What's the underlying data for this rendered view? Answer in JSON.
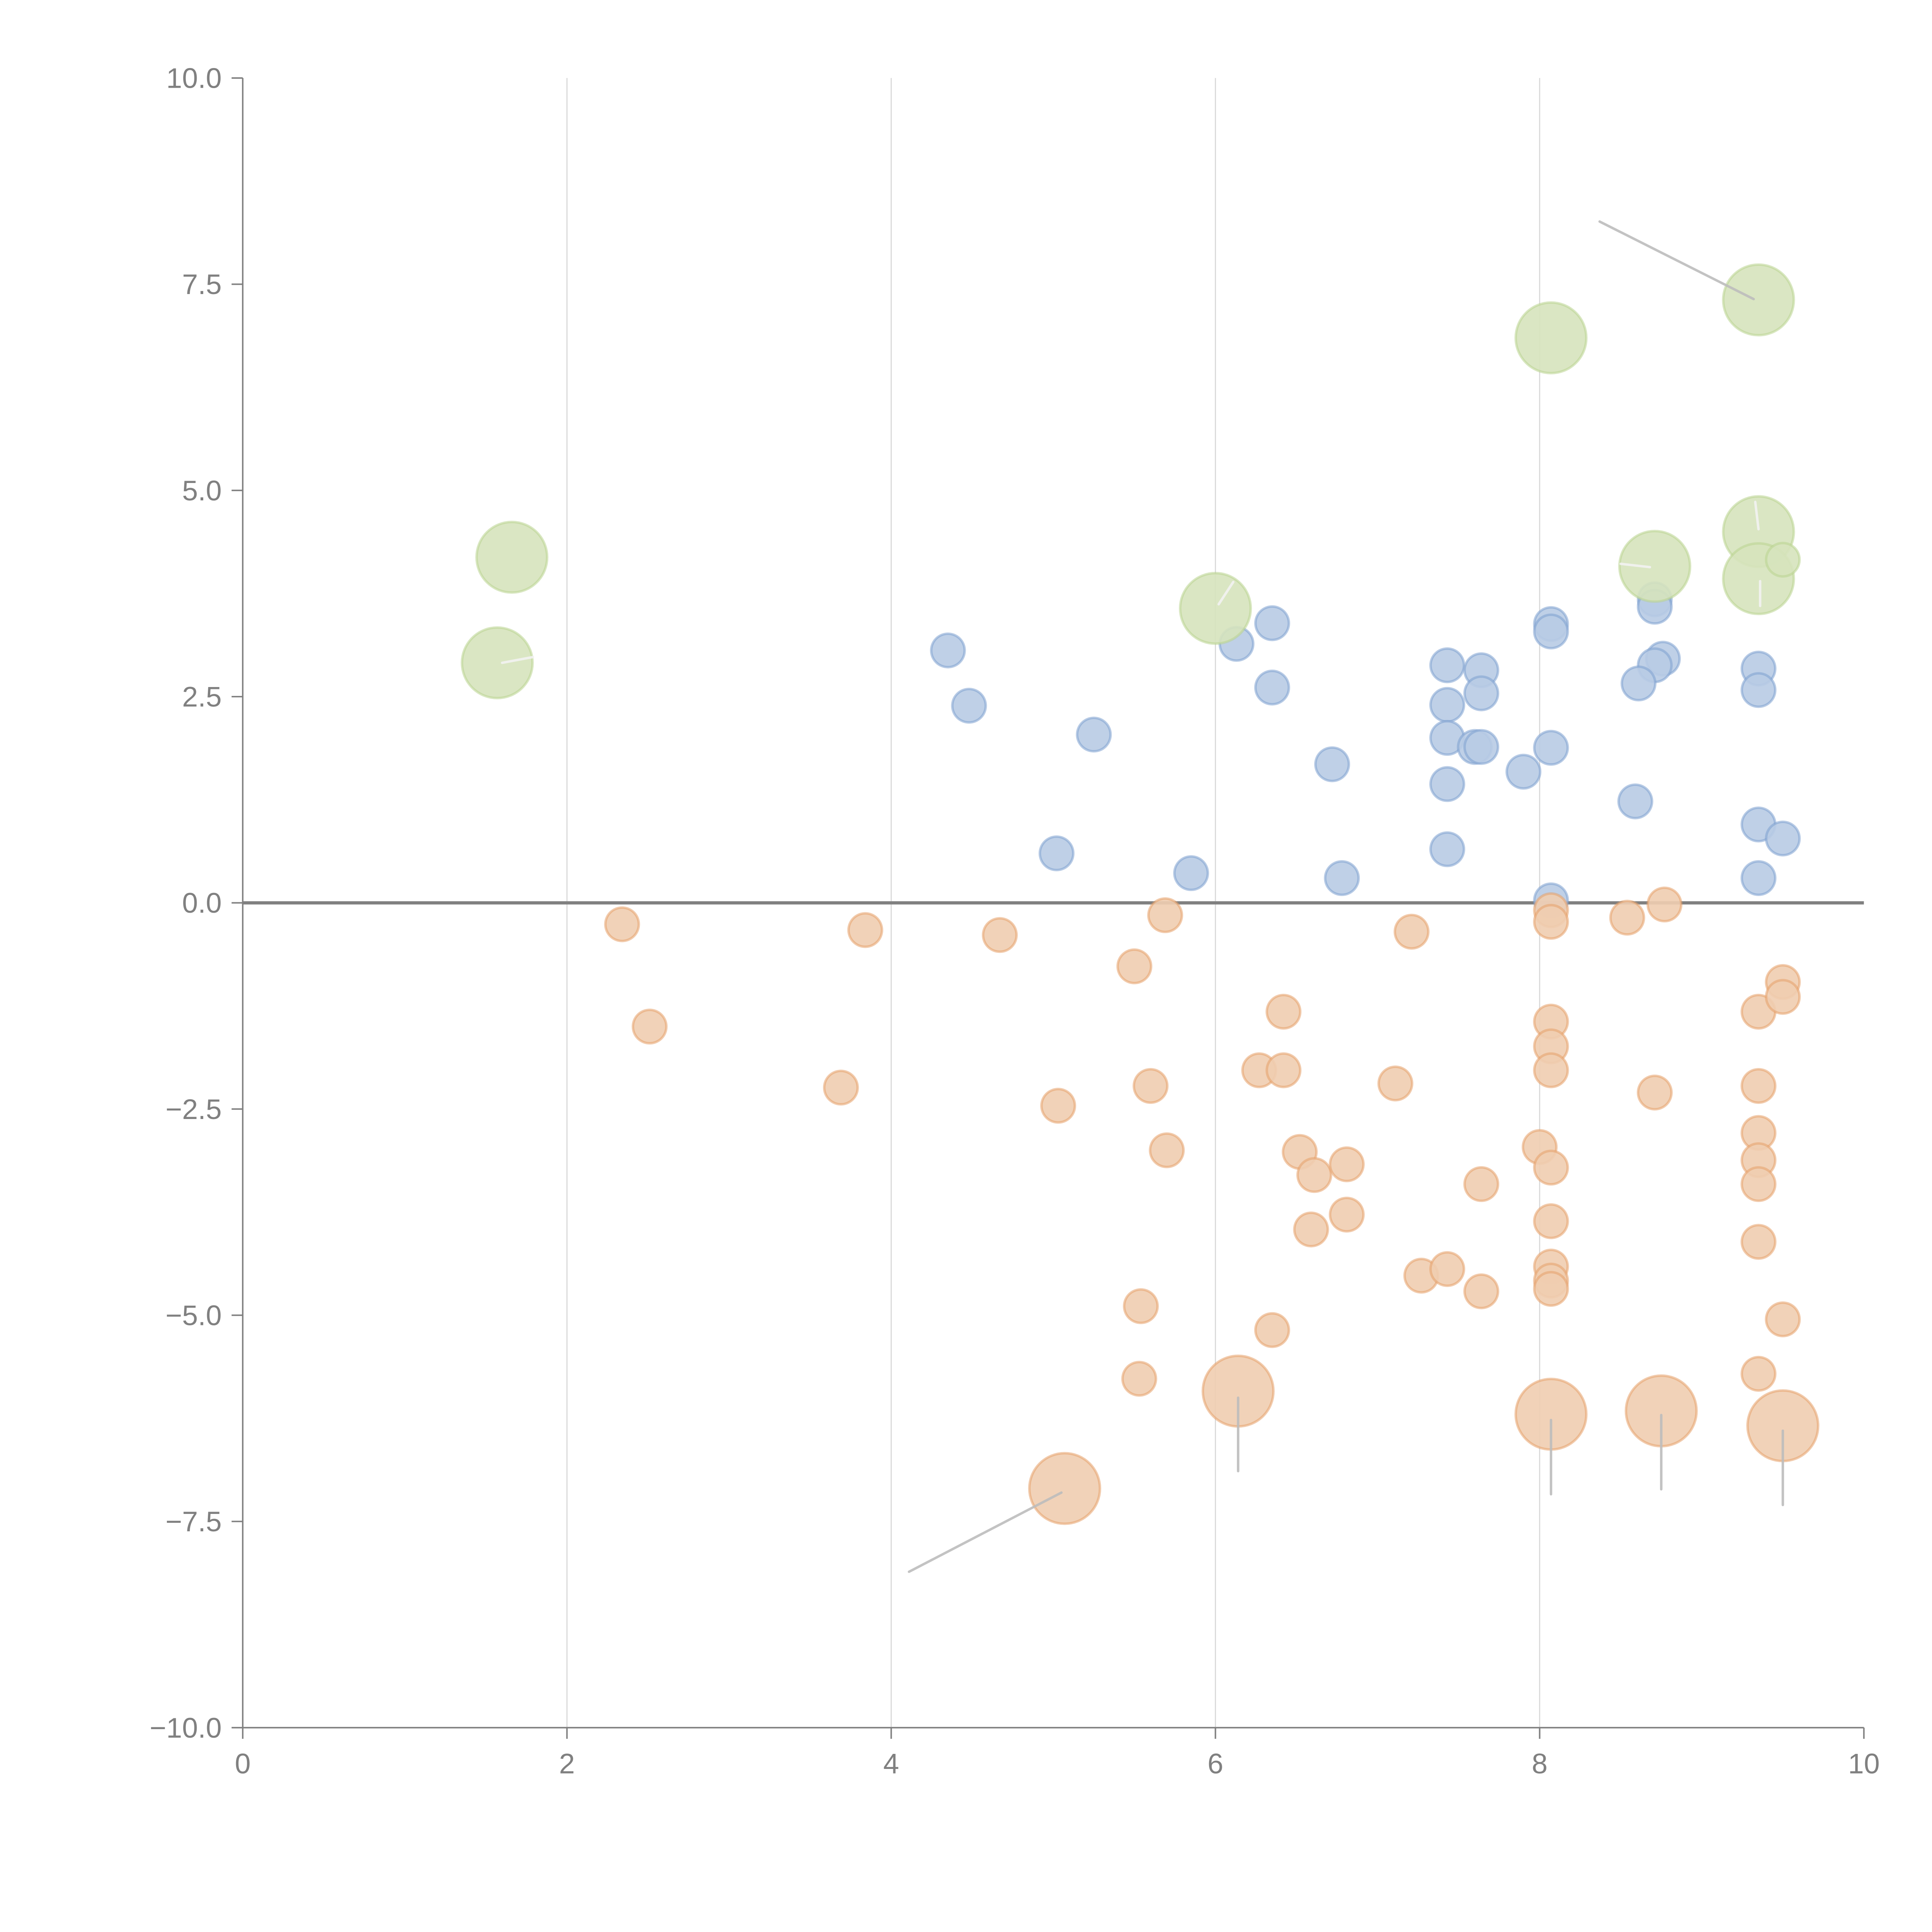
{
  "chart_data": {
    "type": "scatter",
    "title": "",
    "xlabel": "",
    "ylabel": "",
    "xlim": [
      0,
      10
    ],
    "ylim": [
      -10,
      10
    ],
    "grid": "vertical",
    "legend": "none",
    "x_ticks": [
      "0",
      "2",
      "4",
      "6",
      "8",
      "10"
    ],
    "x_tick_values": [
      0,
      2,
      4,
      6,
      8,
      10
    ],
    "y_ticks": [
      "10.0",
      "7.5",
      "5.0",
      "2.5",
      "0.0",
      "−2.5",
      "−5.0",
      "−7.5",
      "−10.0"
    ],
    "y_tick_values": [
      10,
      7.5,
      5,
      2.5,
      0,
      -2.5,
      -5,
      -7.5,
      -10
    ],
    "reference_line_y": 0,
    "series": [
      {
        "name": "positive",
        "color": "#7ea0d0",
        "fill": "#b8cbe4",
        "size": "small",
        "points": [
          [
            4.35,
            3.06
          ],
          [
            4.48,
            2.39
          ],
          [
            5.25,
            2.04
          ],
          [
            5.02,
            0.6
          ],
          [
            5.85,
            0.36
          ],
          [
            6.13,
            3.14
          ],
          [
            6.35,
            3.39
          ],
          [
            6.35,
            2.61
          ],
          [
            6.72,
            1.68
          ],
          [
            6.78,
            0.3
          ],
          [
            7.43,
            2.88
          ],
          [
            7.64,
            2.82
          ],
          [
            7.43,
            2.4
          ],
          [
            7.64,
            2.54
          ],
          [
            7.43,
            2.0
          ],
          [
            7.6,
            1.89
          ],
          [
            7.64,
            1.89
          ],
          [
            7.43,
            1.44
          ],
          [
            7.9,
            1.59
          ],
          [
            7.43,
            0.65
          ],
          [
            8.07,
            3.38
          ],
          [
            8.07,
            3.29
          ],
          [
            8.07,
            1.88
          ],
          [
            8.07,
            0.03
          ],
          [
            8.71,
            3.68
          ],
          [
            8.71,
            3.59
          ],
          [
            8.76,
            2.96
          ],
          [
            8.71,
            2.88
          ],
          [
            8.61,
            2.66
          ],
          [
            8.59,
            1.23
          ],
          [
            9.35,
            2.84
          ],
          [
            9.35,
            2.58
          ],
          [
            9.35,
            0.95
          ],
          [
            9.5,
            0.78
          ],
          [
            9.35,
            0.3
          ]
        ]
      },
      {
        "name": "negative",
        "color": "#e6a06a",
        "fill": "#efcdb0",
        "size": "small",
        "points": [
          [
            2.34,
            -0.26
          ],
          [
            2.51,
            -1.5
          ],
          [
            3.69,
            -2.24
          ],
          [
            3.84,
            -0.33
          ],
          [
            4.67,
            -0.39
          ],
          [
            5.03,
            -2.46
          ],
          [
            5.5,
            -0.77
          ],
          [
            5.69,
            -0.15
          ],
          [
            5.6,
            -2.22
          ],
          [
            5.7,
            -3.0
          ],
          [
            5.54,
            -4.89
          ],
          [
            5.53,
            -5.77
          ],
          [
            6.27,
            -2.03
          ],
          [
            6.42,
            -1.32
          ],
          [
            6.42,
            -2.03
          ],
          [
            6.52,
            -3.02
          ],
          [
            6.61,
            -3.3
          ],
          [
            6.81,
            -3.17
          ],
          [
            6.59,
            -3.96
          ],
          [
            6.81,
            -3.78
          ],
          [
            6.35,
            -5.18
          ],
          [
            7.11,
            -2.19
          ],
          [
            7.21,
            -0.35
          ],
          [
            7.27,
            -4.52
          ],
          [
            7.43,
            -4.44
          ],
          [
            7.64,
            -3.41
          ],
          [
            7.64,
            -4.71
          ],
          [
            8.0,
            -2.96
          ],
          [
            8.07,
            -0.09
          ],
          [
            8.07,
            -0.23
          ],
          [
            8.07,
            -1.44
          ],
          [
            8.07,
            -1.74
          ],
          [
            8.07,
            -2.03
          ],
          [
            8.07,
            -3.21
          ],
          [
            8.07,
            -3.86
          ],
          [
            8.07,
            -4.41
          ],
          [
            8.07,
            -4.58
          ],
          [
            8.07,
            -4.68
          ],
          [
            8.54,
            -0.18
          ],
          [
            8.77,
            -0.02
          ],
          [
            8.71,
            -2.3
          ],
          [
            9.35,
            -1.32
          ],
          [
            9.35,
            -2.22
          ],
          [
            9.35,
            -2.79
          ],
          [
            9.35,
            -3.12
          ],
          [
            9.35,
            -3.41
          ],
          [
            9.35,
            -4.11
          ],
          [
            9.35,
            -5.71
          ],
          [
            9.5,
            -0.96
          ],
          [
            9.5,
            -1.14
          ],
          [
            9.5,
            -5.05
          ]
        ]
      },
      {
        "name": "negative-highlighted",
        "color": "#e6a06a",
        "fill": "#efcdb0",
        "size": "large",
        "points": [
          [
            5.07,
            -7.1
          ],
          [
            6.14,
            -5.92
          ],
          [
            8.07,
            -6.2
          ],
          [
            8.75,
            -6.16
          ],
          [
            9.5,
            -6.34
          ]
        ]
      },
      {
        "name": "highlighted",
        "color": "#b9d38f",
        "fill": "#d6e3bd",
        "size": "large",
        "points": [
          [
            1.57,
            2.91
          ],
          [
            1.66,
            4.19
          ],
          [
            6.0,
            3.57
          ],
          [
            8.07,
            6.85
          ],
          [
            9.35,
            7.31
          ],
          [
            9.35,
            4.5
          ],
          [
            8.71,
            4.08
          ],
          [
            9.35,
            3.93
          ]
        ]
      },
      {
        "name": "highlighted-small",
        "color": "#b9d38f",
        "fill": "#d6e3bd",
        "size": "small",
        "points": [
          [
            9.5,
            4.16
          ]
        ]
      }
    ],
    "annotation_leaders": [
      {
        "from": [
          8.37,
          8.26
        ],
        "to": [
          9.32,
          7.32
        ],
        "color": "#bdbdbd"
      },
      {
        "from": [
          4.11,
          -8.11
        ],
        "to": [
          5.05,
          -7.15
        ],
        "color": "#bdbdbd"
      },
      {
        "from": [
          6.14,
          -6.0
        ],
        "to": [
          6.14,
          -6.89
        ],
        "color": "#bdbdbd"
      },
      {
        "from": [
          8.07,
          -6.27
        ],
        "to": [
          8.07,
          -7.17
        ],
        "color": "#bdbdbd"
      },
      {
        "from": [
          8.75,
          -6.21
        ],
        "to": [
          8.75,
          -7.11
        ],
        "color": "#bdbdbd"
      },
      {
        "from": [
          9.5,
          -6.4
        ],
        "to": [
          9.5,
          -7.3
        ],
        "color": "#bdbdbd"
      },
      {
        "from": [
          1.6,
          2.91
        ],
        "to": [
          1.79,
          2.98
        ],
        "color": "#f2f2f2"
      },
      {
        "from": [
          6.02,
          3.62
        ],
        "to": [
          6.11,
          3.89
        ],
        "color": "#f2f2f2"
      },
      {
        "from": [
          8.5,
          4.11
        ],
        "to": [
          8.68,
          4.07
        ],
        "color": "#f2f2f2"
      },
      {
        "from": [
          9.35,
          4.53
        ],
        "to": [
          9.33,
          4.86
        ],
        "color": "#f2f2f2"
      },
      {
        "from": [
          9.36,
          3.6
        ],
        "to": [
          9.36,
          3.9
        ],
        "color": "#f2f2f2"
      }
    ]
  }
}
